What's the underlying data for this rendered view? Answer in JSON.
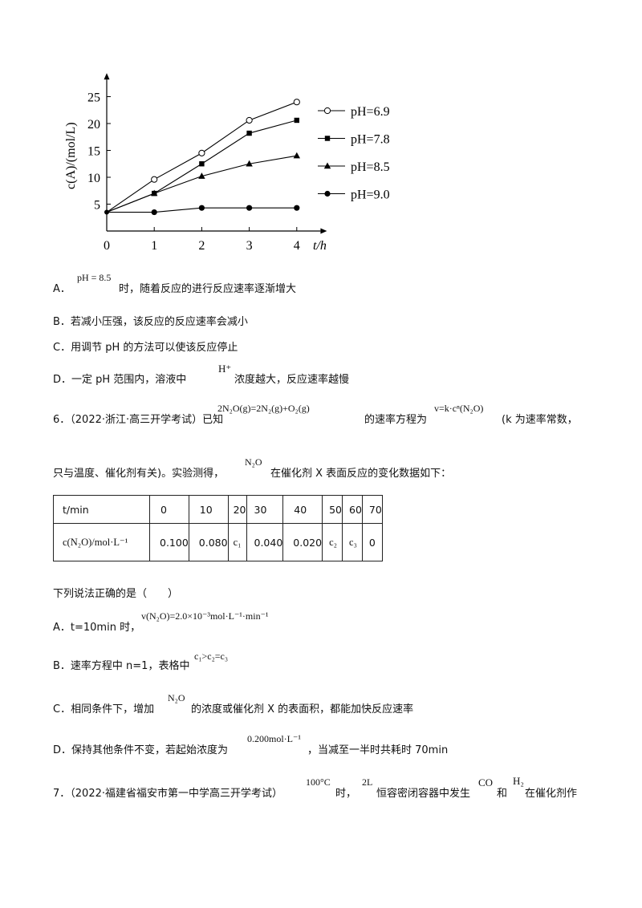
{
  "chart_data": {
    "type": "line",
    "ylabel": "c(A)/(mol/L)",
    "xlabel": "t/h",
    "x": [
      0,
      1,
      2,
      3,
      4
    ],
    "xticks": [
      "0",
      "1",
      "2",
      "3",
      "4"
    ],
    "yticks": [
      "5",
      "10",
      "15",
      "20",
      "25"
    ],
    "ytick_values": [
      5,
      10,
      15,
      20,
      25
    ],
    "xlim": [
      0,
      4.5
    ],
    "ylim": [
      0,
      27
    ],
    "legend_position": "right",
    "series": [
      {
        "name": "pH=6.9",
        "marker": "open-circle",
        "values": [
          3.5,
          9.6,
          14.5,
          20.6,
          24.0
        ]
      },
      {
        "name": "pH=7.8",
        "marker": "square",
        "values": [
          3.5,
          7.0,
          12.5,
          18.2,
          20.6
        ]
      },
      {
        "name": "pH=8.5",
        "marker": "triangle",
        "values": [
          3.5,
          7.0,
          10.2,
          12.5,
          14.0
        ]
      },
      {
        "name": "pH=9.0",
        "marker": "filled-circle",
        "values": [
          3.5,
          3.5,
          4.3,
          4.3,
          4.3
        ]
      }
    ]
  },
  "q5": {
    "A_label": "A．",
    "A_formula": "pH = 8.5",
    "A_text": "时，随着反应的进行反应速率逐渐增大",
    "B": "B．若减小压强，该反应的反应速率会减小",
    "C": "C．用调节 pH 的方法可以使该反应停止",
    "D_label": "D．一定 pH 范围内，溶液中",
    "D_formula": "H⁺",
    "D_text": "浓度越大，反应速率越慢"
  },
  "q6": {
    "num": "6．（2022·浙江·高三开学考试）已知",
    "eq": "2N₂O(g)=2N₂(g)+O₂(g)",
    "mid": "的速率方程为",
    "rate": "v=k·cⁿ(N₂O)",
    "tail": "(k 为速率常数，",
    "line2a": "只与温度、催化剂有关)。实验测得，",
    "species": "N₂O",
    "line2b": "在催化剂 X 表面反应的变化数据如下：",
    "table": {
      "row1_header": "t/min",
      "row1": [
        "0",
        "10",
        "20",
        "30",
        "40",
        "50",
        "60",
        "70"
      ],
      "row2_header": "c(N₂O)/mol·L⁻¹",
      "row2": [
        "0.100",
        "0.080",
        "c₁",
        "0.040",
        "0.020",
        "c₂",
        "c₃",
        "0"
      ]
    },
    "stem": "下列说法正确的是（　　）",
    "A_label": "A．t=10min 时，",
    "A_formula": "v(N₂O)=2.0×10⁻³mol·L⁻¹·min⁻¹",
    "B_label": "B．速率方程中 n=1，表格中",
    "B_formula": "c₁>c₂=c₃",
    "C_label": "C．相同条件下，增加",
    "C_formula": "N₂O",
    "C_text": "的浓度或催化剂 X 的表面积，都能加快反应速率",
    "D_label": "D．保持其他条件不变，若起始浓度为",
    "D_formula": "0.200mol·L⁻¹",
    "D_text": "，当减至一半时共耗时 70min"
  },
  "q7": {
    "num": "7．（2022·福建省福安市第一中学高三开学考试）",
    "temp": "100°C",
    "t1": "时，",
    "vol": "2L",
    "t2": "恒容密闭容器中发生",
    "co": "CO",
    "t3": "和",
    "h2": "H₂",
    "t4": "在催化剂作"
  }
}
